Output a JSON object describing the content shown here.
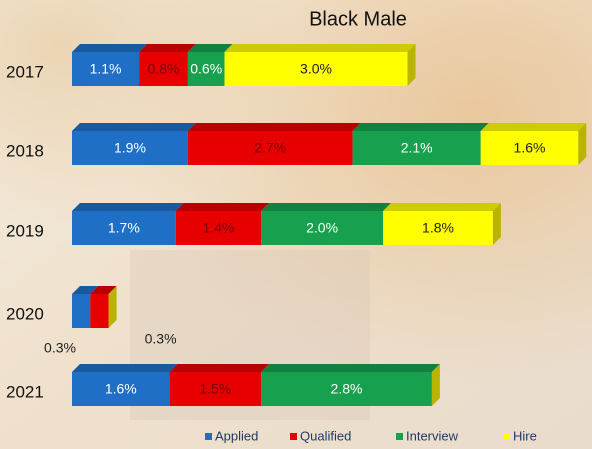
{
  "chart_data": {
    "type": "stacked-bar-3d",
    "title": "Black Male",
    "categories": [
      "2017",
      "2018",
      "2019",
      "2020",
      "2021"
    ],
    "series": [
      {
        "name": "Applied",
        "color": "#1f6fc6",
        "values": [
          1.1,
          1.9,
          1.7,
          0.3,
          1.6
        ],
        "value_labels": [
          "1.1%",
          "1.9%",
          "1.7%",
          "0.3%",
          "1.6%"
        ]
      },
      {
        "name": "Qualified",
        "color": "#e60000",
        "values": [
          0.8,
          2.7,
          1.4,
          0.3,
          1.5
        ],
        "value_labels": [
          "0.8%",
          "2.7%",
          "1.4%",
          "0.3%",
          "1.5%"
        ]
      },
      {
        "name": "Interview",
        "color": "#17a14f",
        "values": [
          0.6,
          2.1,
          2.0,
          null,
          2.8
        ],
        "value_labels": [
          "0.6%",
          "2.1%",
          "2.0%",
          null,
          "2.8%"
        ]
      },
      {
        "name": "Hire",
        "color": "#ffff00",
        "values": [
          3.0,
          1.6,
          1.8,
          null,
          null
        ],
        "value_labels": [
          "3.0%",
          "1.6%",
          "1.8%",
          null,
          null
        ]
      }
    ]
  }
}
